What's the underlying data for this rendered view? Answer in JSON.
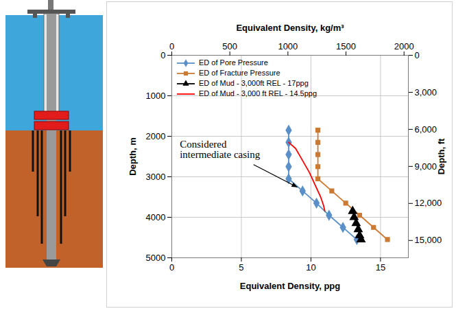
{
  "chart_data": {
    "type": "line",
    "x_label": "Equivalent Density, ppg",
    "y_label": "Depth, m",
    "x2_label": "Equivalent Density, kg/m³",
    "y2_label": "Depth, ft",
    "xlim": [
      0,
      17
    ],
    "xticks": [
      0,
      5,
      10,
      15
    ],
    "x2lim": [
      0,
      2037
    ],
    "x2ticks": [
      0,
      500,
      1000,
      1500,
      2000
    ],
    "ylim": [
      0,
      5000
    ],
    "yticks": [
      0,
      1000,
      2000,
      3000,
      4000,
      5000
    ],
    "y2lim": [
      0,
      16404
    ],
    "y2ticks": [
      0,
      {
        "value": 3000,
        "label": "3,000"
      },
      {
        "value": 6000,
        "label": "6,000"
      },
      {
        "value": 9000,
        "label": "9,000"
      },
      {
        "value": 12000,
        "label": "12,000"
      },
      {
        "value": 15000,
        "label": "15,000"
      }
    ],
    "grid": true,
    "legend": "upper left",
    "series": [
      {
        "name": "ED of Pore Pressure",
        "color": "#5a8fc9",
        "marker": "diamond",
        "x": [
          8.4,
          8.4,
          8.4,
          8.4,
          8.4,
          9.4,
          10.4,
          11.3,
          12.3,
          13.3
        ],
        "y": [
          1850,
          2150,
          2450,
          2750,
          3050,
          3350,
          3650,
          3950,
          4250,
          4550
        ]
      },
      {
        "name": "ED of Fracture Pressure",
        "color": "#cc7a33",
        "marker": "square",
        "x": [
          10.5,
          10.5,
          10.5,
          10.5,
          10.5,
          11.5,
          12.5,
          13.5,
          14.5,
          15.5
        ],
        "y": [
          1850,
          2150,
          2450,
          2750,
          3050,
          3350,
          3650,
          3950,
          4250,
          4550
        ]
      },
      {
        "name": "ED of Mud - 3,000ft REL - 17ppg",
        "color": "#000000",
        "marker": "triangle",
        "x": [
          13.0,
          13.1,
          13.25,
          13.4,
          13.5,
          13.6
        ],
        "y": [
          3850,
          4000,
          4150,
          4300,
          4450,
          4550
        ]
      },
      {
        "name": "ED of Mud - 3,000 ft REL - 14.5ppg",
        "color": "#ff0000",
        "marker": "none",
        "x": [
          8.4,
          8.9,
          9.4,
          9.9,
          10.3,
          10.7,
          10.9,
          11.0
        ],
        "y": [
          2150,
          2300,
          2600,
          2900,
          3200,
          3500,
          3700,
          3850
        ]
      }
    ],
    "annotations": [
      {
        "text": "Considered intermediate casing",
        "x": 9.2,
        "y": 3300
      }
    ]
  }
}
